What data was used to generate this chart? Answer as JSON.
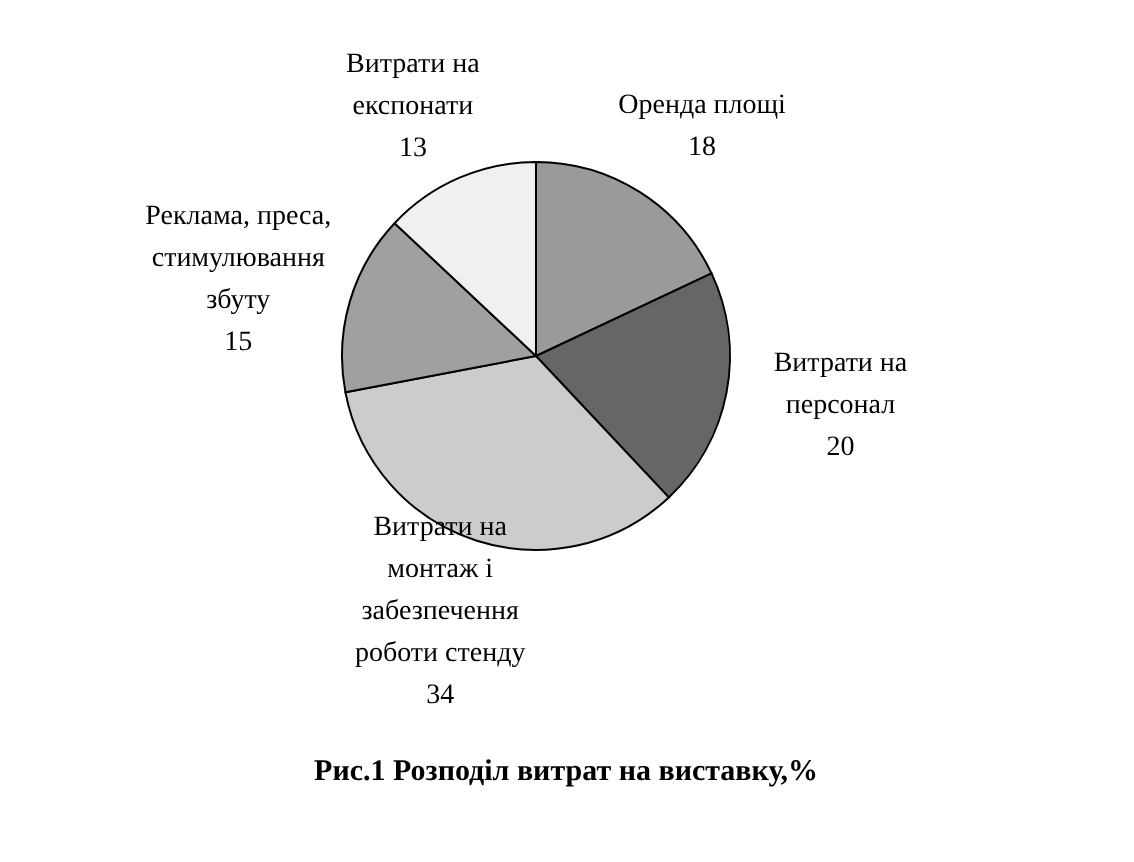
{
  "chart_data": {
    "type": "pie",
    "title": "Рис.1 Розподіл витрат на виставку,%",
    "categories": [
      "Оренда площі",
      "Витрати на персонал",
      "Витрати на монтаж і забезпечення роботи стенду",
      "Реклама, преса, стимулювання збуту",
      "Витрати на експонати"
    ],
    "values": [
      18,
      20,
      34,
      15,
      13
    ],
    "colors": [
      "#9a9a9a",
      "#666666",
      "#cccccc",
      "#a0a0a0",
      "#f0f0f0"
    ],
    "data_labels": true
  }
}
